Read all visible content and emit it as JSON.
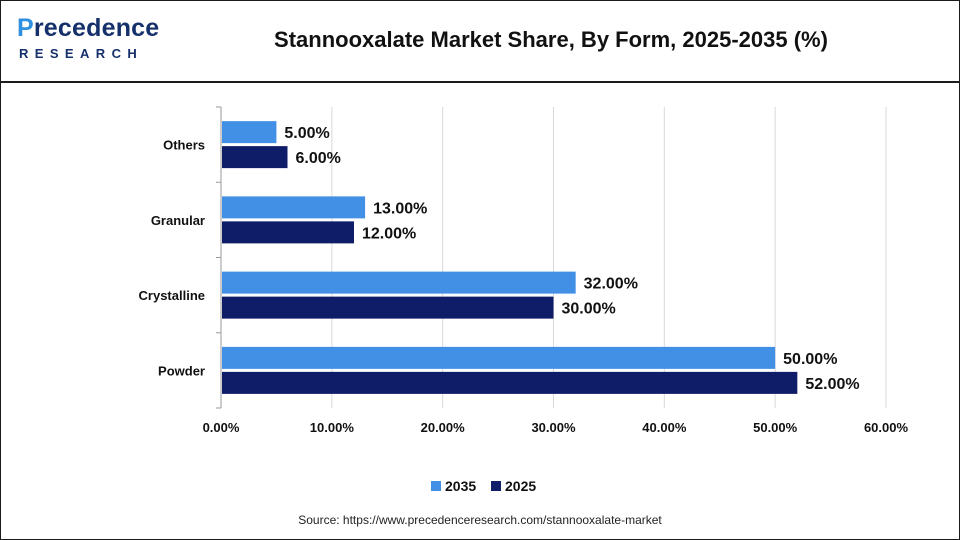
{
  "header": {
    "logo_main_lead": "P",
    "logo_main_rest": "recedence",
    "logo_sub": "RESEARCH"
  },
  "source_text": "Source: https://www.precedenceresearch.com/stannooxalate-market",
  "colors": {
    "series_2035": "#4190e6",
    "series_2025": "#0f1c68"
  },
  "chart_data": {
    "type": "bar",
    "orientation": "horizontal",
    "title": "Stannooxalate Market Share, By Form, 2025-2035 (%)",
    "categories": [
      "Others",
      "Granular",
      "Crystalline",
      "Powder"
    ],
    "series": [
      {
        "name": "2035",
        "values": [
          5,
          13,
          32,
          50
        ]
      },
      {
        "name": "2025",
        "values": [
          6,
          12,
          30,
          52
        ]
      }
    ],
    "value_labels": [
      [
        "5.00%",
        "13.00%",
        "32.00%",
        "50.00%"
      ],
      [
        "6.00%",
        "12.00%",
        "30.00%",
        "52.00%"
      ]
    ],
    "xlim": [
      0,
      60
    ],
    "x_ticks": [
      0,
      10,
      20,
      30,
      40,
      50,
      60
    ],
    "x_tick_labels": [
      "0.00%",
      "10.00%",
      "20.00%",
      "30.00%",
      "40.00%",
      "50.00%",
      "60.00%"
    ],
    "xlabel": "",
    "ylabel": "",
    "grid": true,
    "legend_position": "bottom"
  }
}
